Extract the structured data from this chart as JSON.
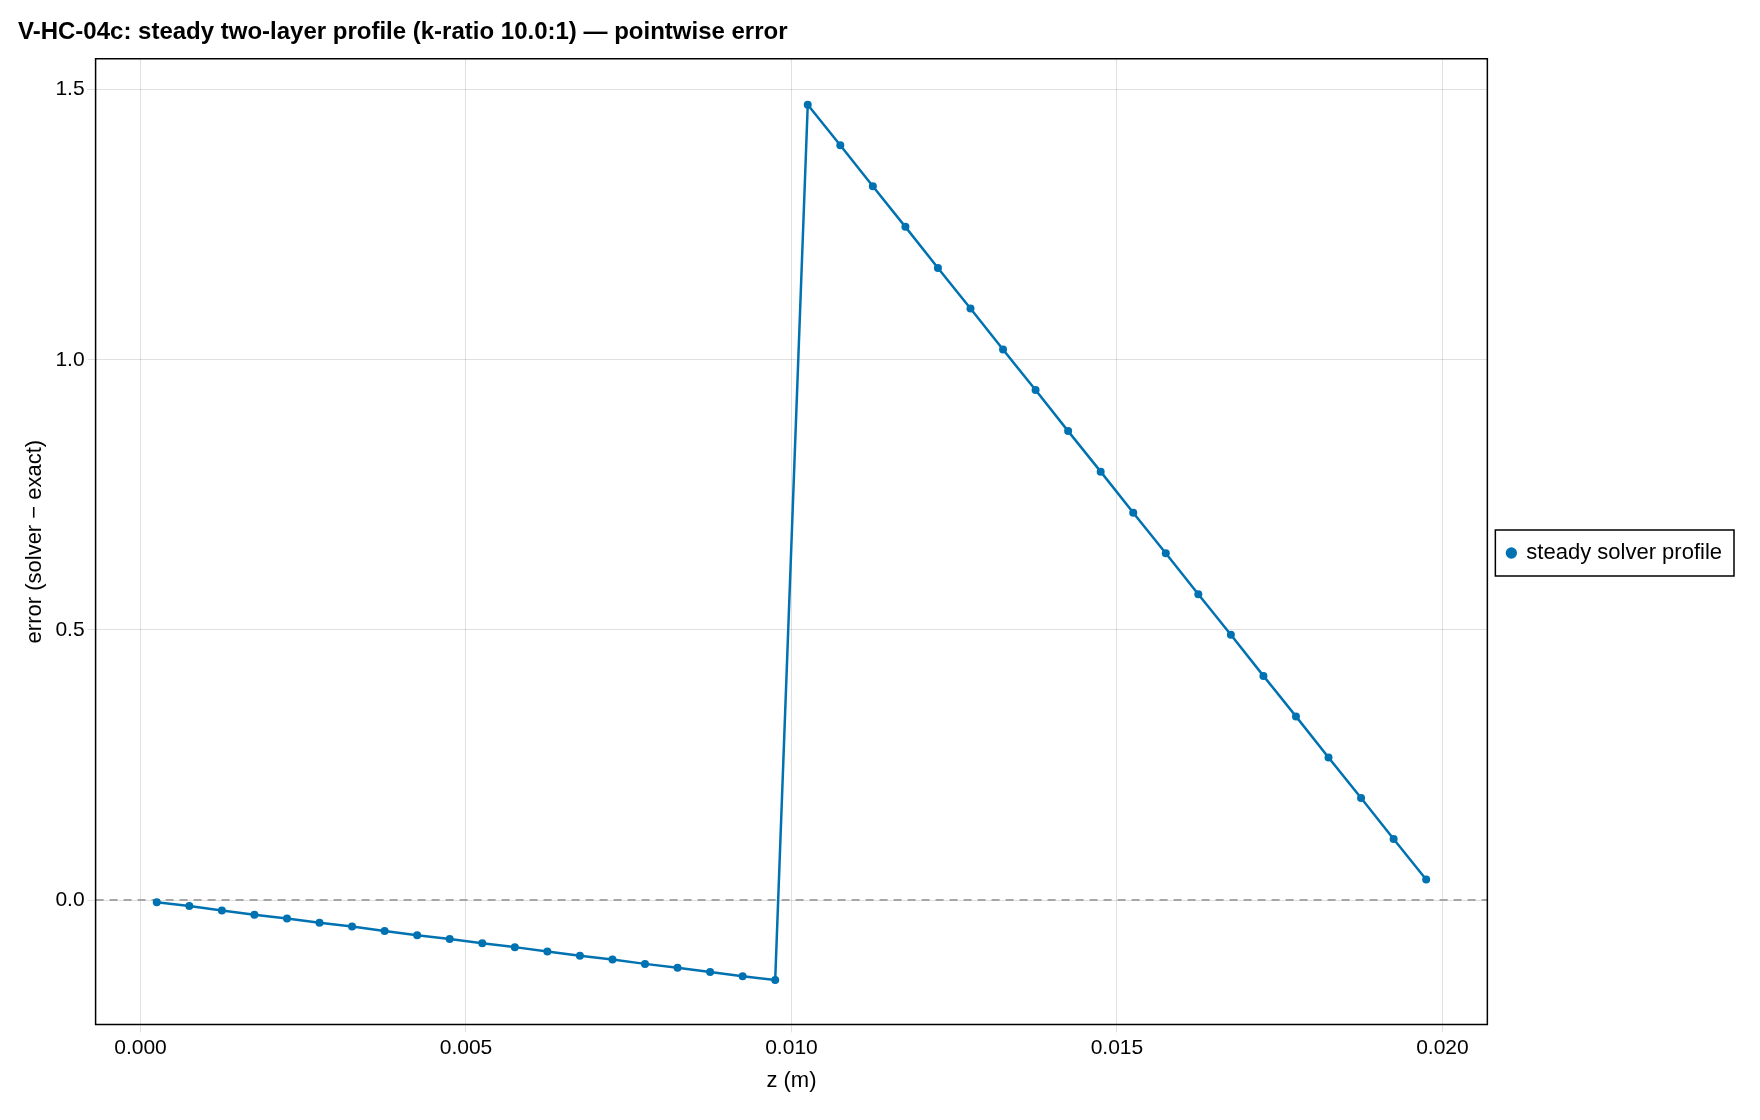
{
  "chart_data": {
    "type": "line",
    "title": "V-HC-04c: steady two-layer profile (k-ratio 10.0:1) — pointwise error",
    "xlabel": "z (m)",
    "ylabel": "error (solver − exact)",
    "x": [
      0.00025,
      0.00075,
      0.00125,
      0.00175,
      0.00225,
      0.00275,
      0.00325,
      0.00375,
      0.00425,
      0.00475,
      0.00525,
      0.00575,
      0.00625,
      0.00675,
      0.00725,
      0.00775,
      0.00825,
      0.00875,
      0.00925,
      0.00975,
      0.01025,
      0.01075,
      0.01125,
      0.01175,
      0.01225,
      0.01275,
      0.01325,
      0.01375,
      0.01425,
      0.01475,
      0.01525,
      0.01575,
      0.01625,
      0.01675,
      0.01725,
      0.01775,
      0.01825,
      0.01875,
      0.01925,
      0.01975
    ],
    "series": [
      {
        "name": "steady solver profile",
        "color": "#0072b2",
        "values": [
          -0.004,
          -0.011,
          -0.019,
          -0.027,
          -0.034,
          -0.042,
          -0.049,
          -0.057,
          -0.065,
          -0.072,
          -0.08,
          -0.087,
          -0.095,
          -0.103,
          -0.11,
          -0.118,
          -0.125,
          -0.133,
          -0.141,
          -0.148,
          1.472,
          1.397,
          1.321,
          1.246,
          1.17,
          1.095,
          1.019,
          0.944,
          0.868,
          0.793,
          0.717,
          0.642,
          0.566,
          0.491,
          0.415,
          0.34,
          0.264,
          0.189,
          0.113,
          0.038
        ]
      }
    ],
    "xlim": [
      -0.00069,
      0.02069
    ],
    "ylim": [
      -0.23,
      1.557
    ],
    "xticks": [
      {
        "value": 0,
        "label": "0.000"
      },
      {
        "value": 0.005,
        "label": "0.005"
      },
      {
        "value": 0.01,
        "label": "0.010"
      },
      {
        "value": 0.015,
        "label": "0.015"
      },
      {
        "value": 0.02,
        "label": "0.020"
      }
    ],
    "yticks": [
      {
        "value": 0,
        "label": "0.0"
      },
      {
        "value": 0.5,
        "label": "0.5"
      },
      {
        "value": 1,
        "label": "1.0"
      },
      {
        "value": 1.5,
        "label": "1.5"
      }
    ],
    "ref_lines": [
      {
        "axis": "y",
        "value": 0,
        "color": "#a6a6a6",
        "line_style": "dashed"
      }
    ],
    "grid": true,
    "legend": "right",
    "marker": "circle",
    "line_style": "solid"
  }
}
